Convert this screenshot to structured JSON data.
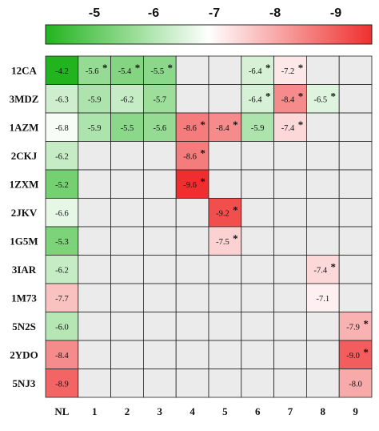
{
  "chart_data": {
    "type": "heatmap",
    "colorbar": {
      "ticks": [
        "-5",
        "-6",
        "-7",
        "-8",
        "-9"
      ],
      "range": [
        -4.2,
        -9.6
      ],
      "colors": {
        "low": "#22b41e",
        "mid": "#ffffff",
        "high": "#ef2f2f"
      }
    },
    "rows": [
      "12CA",
      "3MDZ",
      "1AZM",
      "2CKJ",
      "1ZXM",
      "2JKV",
      "1G5M",
      "3IAR",
      "1M73",
      "5N2S",
      "2YDO",
      "5NJ3"
    ],
    "columns": [
      "NL",
      "1",
      "2",
      "3",
      "4",
      "5",
      "6",
      "7",
      "8",
      "9"
    ],
    "empty_color": "#ebebeb",
    "cells": [
      [
        {
          "v": "-4.2",
          "s": false
        },
        {
          "v": "-5.6",
          "s": true
        },
        {
          "v": "-5.4",
          "s": true
        },
        {
          "v": "-5.5",
          "s": true
        },
        null,
        null,
        {
          "v": "-6.4",
          "s": true
        },
        {
          "v": "-7.2",
          "s": true
        },
        null,
        null
      ],
      [
        {
          "v": "-6.3",
          "s": false
        },
        {
          "v": "-5.9",
          "s": false
        },
        {
          "v": "-6.2",
          "s": false
        },
        {
          "v": "-5.7",
          "s": false
        },
        null,
        null,
        {
          "v": "-6.4",
          "s": true
        },
        {
          "v": "-8.4",
          "s": true
        },
        {
          "v": "-6.5",
          "s": true
        },
        null
      ],
      [
        {
          "v": "-6.8",
          "s": false
        },
        {
          "v": "-5.9",
          "s": false
        },
        {
          "v": "-5.5",
          "s": false
        },
        {
          "v": "-5.6",
          "s": false
        },
        {
          "v": "-8.6",
          "s": true
        },
        {
          "v": "-8.4",
          "s": true
        },
        {
          "v": "-5.9",
          "s": false
        },
        {
          "v": "-7.4",
          "s": true
        },
        null,
        null
      ],
      [
        {
          "v": "-6.2",
          "s": false
        },
        null,
        null,
        null,
        {
          "v": "-8.6",
          "s": true
        },
        null,
        null,
        null,
        null,
        null
      ],
      [
        {
          "v": "-5.2",
          "s": false
        },
        null,
        null,
        null,
        {
          "v": "-9.6",
          "s": true
        },
        null,
        null,
        null,
        null,
        null
      ],
      [
        {
          "v": "-6.6",
          "s": false
        },
        null,
        null,
        null,
        null,
        {
          "v": "-9.2",
          "s": true
        },
        null,
        null,
        null,
        null
      ],
      [
        {
          "v": "-5.3",
          "s": false
        },
        null,
        null,
        null,
        null,
        {
          "v": "-7.5",
          "s": true
        },
        null,
        null,
        null,
        null
      ],
      [
        {
          "v": "-6.2",
          "s": false
        },
        null,
        null,
        null,
        null,
        null,
        null,
        null,
        {
          "v": "-7.4",
          "s": true
        },
        null
      ],
      [
        {
          "v": "-7.7",
          "s": false
        },
        null,
        null,
        null,
        null,
        null,
        null,
        null,
        {
          "v": "-7.1",
          "s": false
        },
        null
      ],
      [
        {
          "v": "-6.0",
          "s": false
        },
        null,
        null,
        null,
        null,
        null,
        null,
        null,
        null,
        {
          "v": "-7.9",
          "s": true
        }
      ],
      [
        {
          "v": "-8.4",
          "s": false
        },
        null,
        null,
        null,
        null,
        null,
        null,
        null,
        null,
        {
          "v": "-9.0",
          "s": true
        }
      ],
      [
        {
          "v": "-8.9",
          "s": false
        },
        null,
        null,
        null,
        null,
        null,
        null,
        null,
        null,
        {
          "v": "-8.0",
          "s": false
        }
      ]
    ],
    "star_symbol": "*"
  }
}
